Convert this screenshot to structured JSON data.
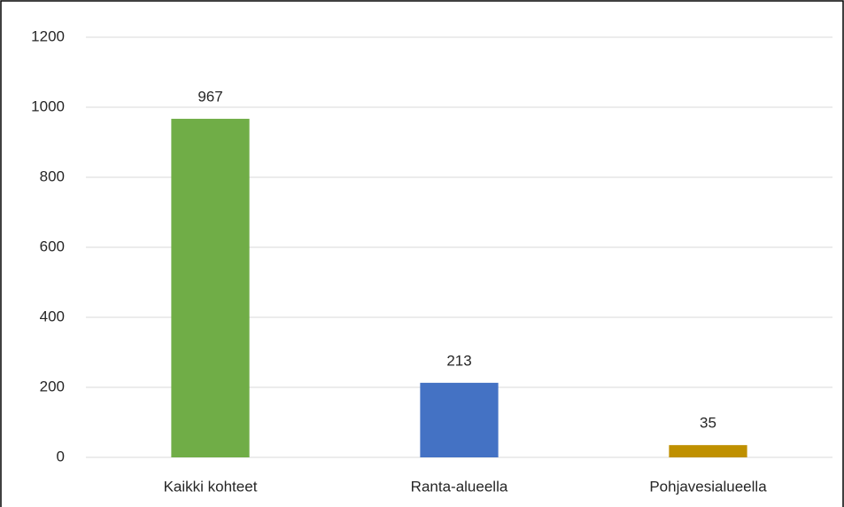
{
  "chart_data": {
    "type": "bar",
    "categories": [
      "Kaikki kohteet",
      "Ranta-alueella",
      "Pohjavesialueella"
    ],
    "values": [
      967,
      213,
      35
    ],
    "colors": [
      "#70ad47",
      "#4472c4",
      "#bf9000"
    ],
    "ylim": [
      0,
      1200
    ],
    "yticks": [
      0,
      200,
      400,
      600,
      800,
      1000,
      1200
    ],
    "grid": true
  }
}
